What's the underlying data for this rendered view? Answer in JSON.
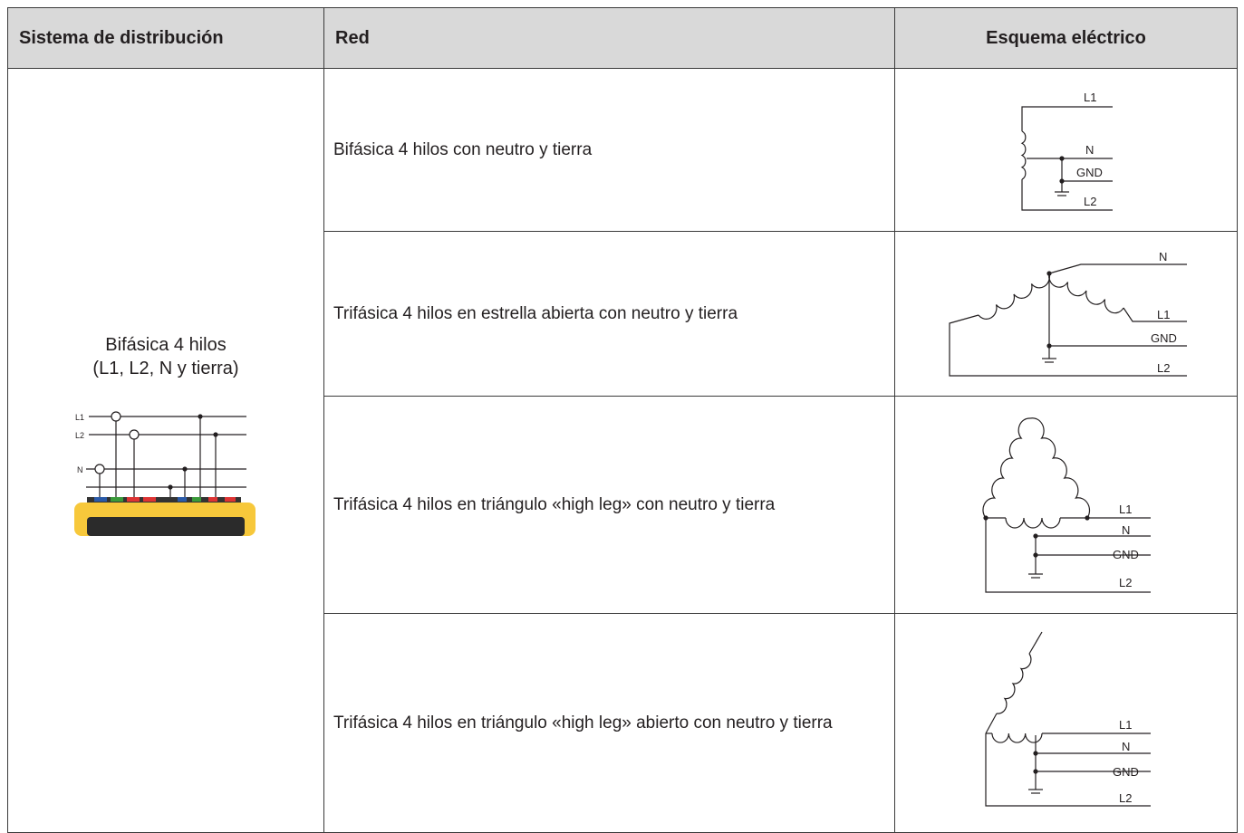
{
  "table": {
    "header": [
      "Sistema de distribución",
      "Red",
      "Esquema eléctrico"
    ],
    "system": {
      "title": "Bifásica 4 hilos",
      "subtitle": "(L1, L2, N y tierra)",
      "device_labels": [
        "L1",
        "L2",
        "N"
      ]
    },
    "rows": [
      {
        "network": "Bifásica 4 hilos con neutro y tierra",
        "labels": [
          "L1",
          "N",
          "GND",
          "L2"
        ]
      },
      {
        "network": "Trifásica 4 hilos en estrella abierta con neutro y tierra",
        "labels": [
          "N",
          "L1",
          "GND",
          "L2"
        ]
      },
      {
        "network": "Trifásica 4 hilos en triángulo «high leg» con neutro y tierra",
        "labels": [
          "L1",
          "N",
          "GND",
          "L2"
        ]
      },
      {
        "network": "Trifásica 4 hilos en triángulo «high leg» abierto con neutro y tierra",
        "labels": [
          "L1",
          "N",
          "GND",
          "L2"
        ]
      }
    ]
  }
}
